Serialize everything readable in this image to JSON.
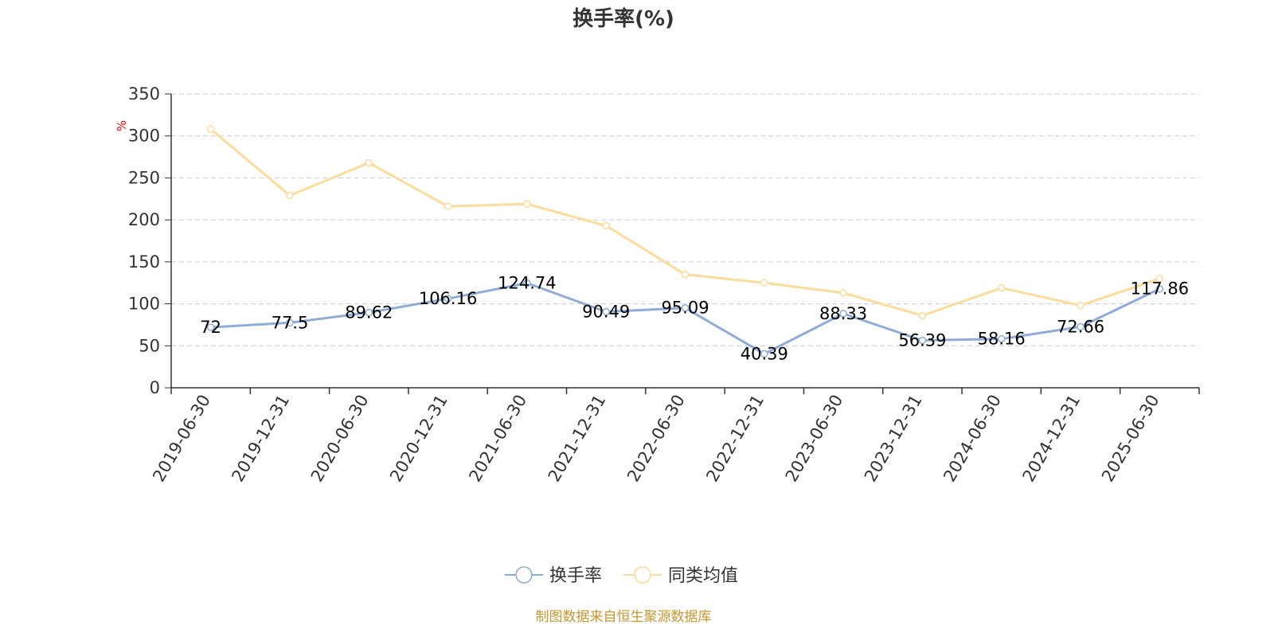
{
  "chart_data": {
    "type": "line",
    "title": "换手率(%)",
    "ylabel": "%",
    "xlabel": "",
    "ylim": [
      0,
      350
    ],
    "yticks": [
      0,
      50,
      100,
      150,
      200,
      250,
      300,
      350
    ],
    "grid": true,
    "legend_position": "bottom-center",
    "categories": [
      "2019-06-30",
      "2019-12-31",
      "2020-06-30",
      "2020-12-31",
      "2021-06-30",
      "2021-12-31",
      "2022-06-30",
      "2022-12-31",
      "2023-06-30",
      "2023-12-31",
      "2024-06-30",
      "2024-12-31",
      "2025-06-30"
    ],
    "series": [
      {
        "name": "换手率",
        "color": "#8eacd9",
        "show_labels": true,
        "values": [
          72,
          77.5,
          89.62,
          106.16,
          124.74,
          90.49,
          95.09,
          40.39,
          88.33,
          56.39,
          58.16,
          72.66,
          117.86
        ],
        "labels": [
          "72",
          "77.5",
          "89.62",
          "106.16",
          "124.74",
          "90.49",
          "95.09",
          "40.39",
          "88.33",
          "56.39",
          "58.16",
          "72.66",
          "117.86"
        ]
      },
      {
        "name": "同类均值",
        "color": "#fddb9b",
        "show_labels": false,
        "values": [
          308,
          229,
          268,
          216,
          219,
          193,
          135,
          125,
          113,
          86,
          119,
          98,
          130
        ]
      }
    ],
    "source": "制图数据来自恒生聚源数据库",
    "colors": {
      "axis": "#333333",
      "grid": "#cccccc",
      "tick_text": "#333333",
      "title": "#333333",
      "ylabel": "#ff0000",
      "source": "#c8962e",
      "label": "#000000"
    }
  }
}
